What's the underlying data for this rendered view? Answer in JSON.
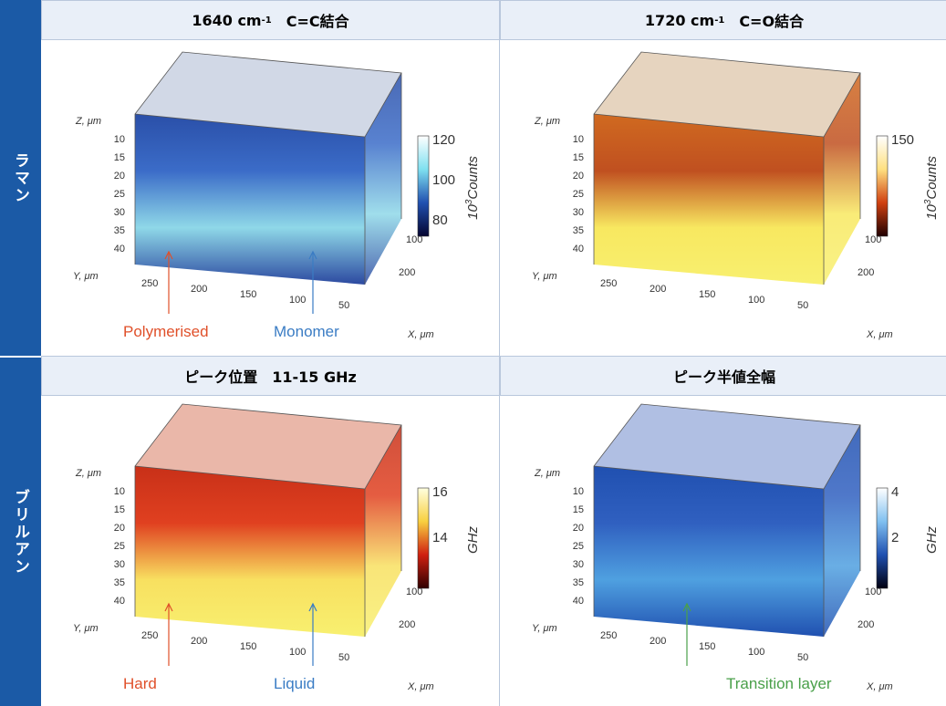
{
  "rows": [
    {
      "label": "ラマン",
      "panels": [
        {
          "title": {
            "main": "1640 cm",
            "sup": "-1",
            "rest": "C=C結合"
          },
          "z_label": "Z, μm",
          "z_ticks": [
            10,
            15,
            20,
            25,
            30,
            35,
            40
          ],
          "y_label": "Y, μm",
          "y_ticks": [
            250,
            200,
            150,
            100,
            50
          ],
          "x_label": "X, μm",
          "x_ticks": [
            100,
            200
          ],
          "colorbar_ticks": [
            120,
            100,
            80
          ],
          "colorbar_label": {
            "base": "10",
            "sup": "3",
            "rest": "Counts"
          },
          "annotations": [
            {
              "text": "Polymerised",
              "color": "#e0502a"
            },
            {
              "text": "Monomer",
              "color": "#3a7cc4"
            }
          ]
        },
        {
          "title": {
            "main": "1720 cm",
            "sup": "-1",
            "rest": "C=O結合"
          },
          "z_label": "Z, μm",
          "z_ticks": [
            10,
            15,
            20,
            25,
            30,
            35,
            40
          ],
          "y_label": "Y, μm",
          "y_ticks": [
            250,
            200,
            150,
            100,
            50
          ],
          "x_label": "X, μm",
          "x_ticks": [
            100,
            200
          ],
          "colorbar_ticks": [
            150
          ],
          "colorbar_label": {
            "base": "10",
            "sup": "3",
            "rest": "Counts"
          },
          "annotations": []
        }
      ]
    },
    {
      "label": "ブリルアン",
      "panels": [
        {
          "title": {
            "main": "ピーク位置　11-15 GHz"
          },
          "z_label": "Z, μm",
          "z_ticks": [
            10,
            15,
            20,
            25,
            30,
            35,
            40
          ],
          "y_label": "Y, μm",
          "y_ticks": [
            250,
            200,
            150,
            100,
            50
          ],
          "x_label": "X, μm",
          "x_ticks": [
            100,
            200
          ],
          "colorbar_ticks": [
            16,
            14
          ],
          "colorbar_label": {
            "rest": "GHz"
          },
          "annotations": [
            {
              "text": "Hard",
              "color": "#e0502a"
            },
            {
              "text": "Liquid",
              "color": "#3a7cc4"
            }
          ]
        },
        {
          "title": {
            "main": "ピーク半値全幅"
          },
          "z_label": "Z, μm",
          "z_ticks": [
            10,
            15,
            20,
            25,
            30,
            35,
            40
          ],
          "y_label": "Y, μm",
          "y_ticks": [
            250,
            200,
            150,
            100,
            50
          ],
          "x_label": "X, μm",
          "x_ticks": [
            100,
            200
          ],
          "colorbar_ticks": [
            4,
            2
          ],
          "colorbar_label": {
            "rest": "GHz"
          },
          "annotations": [
            {
              "text": "Transition layer",
              "color": "#4aa04a"
            }
          ]
        }
      ]
    }
  ]
}
